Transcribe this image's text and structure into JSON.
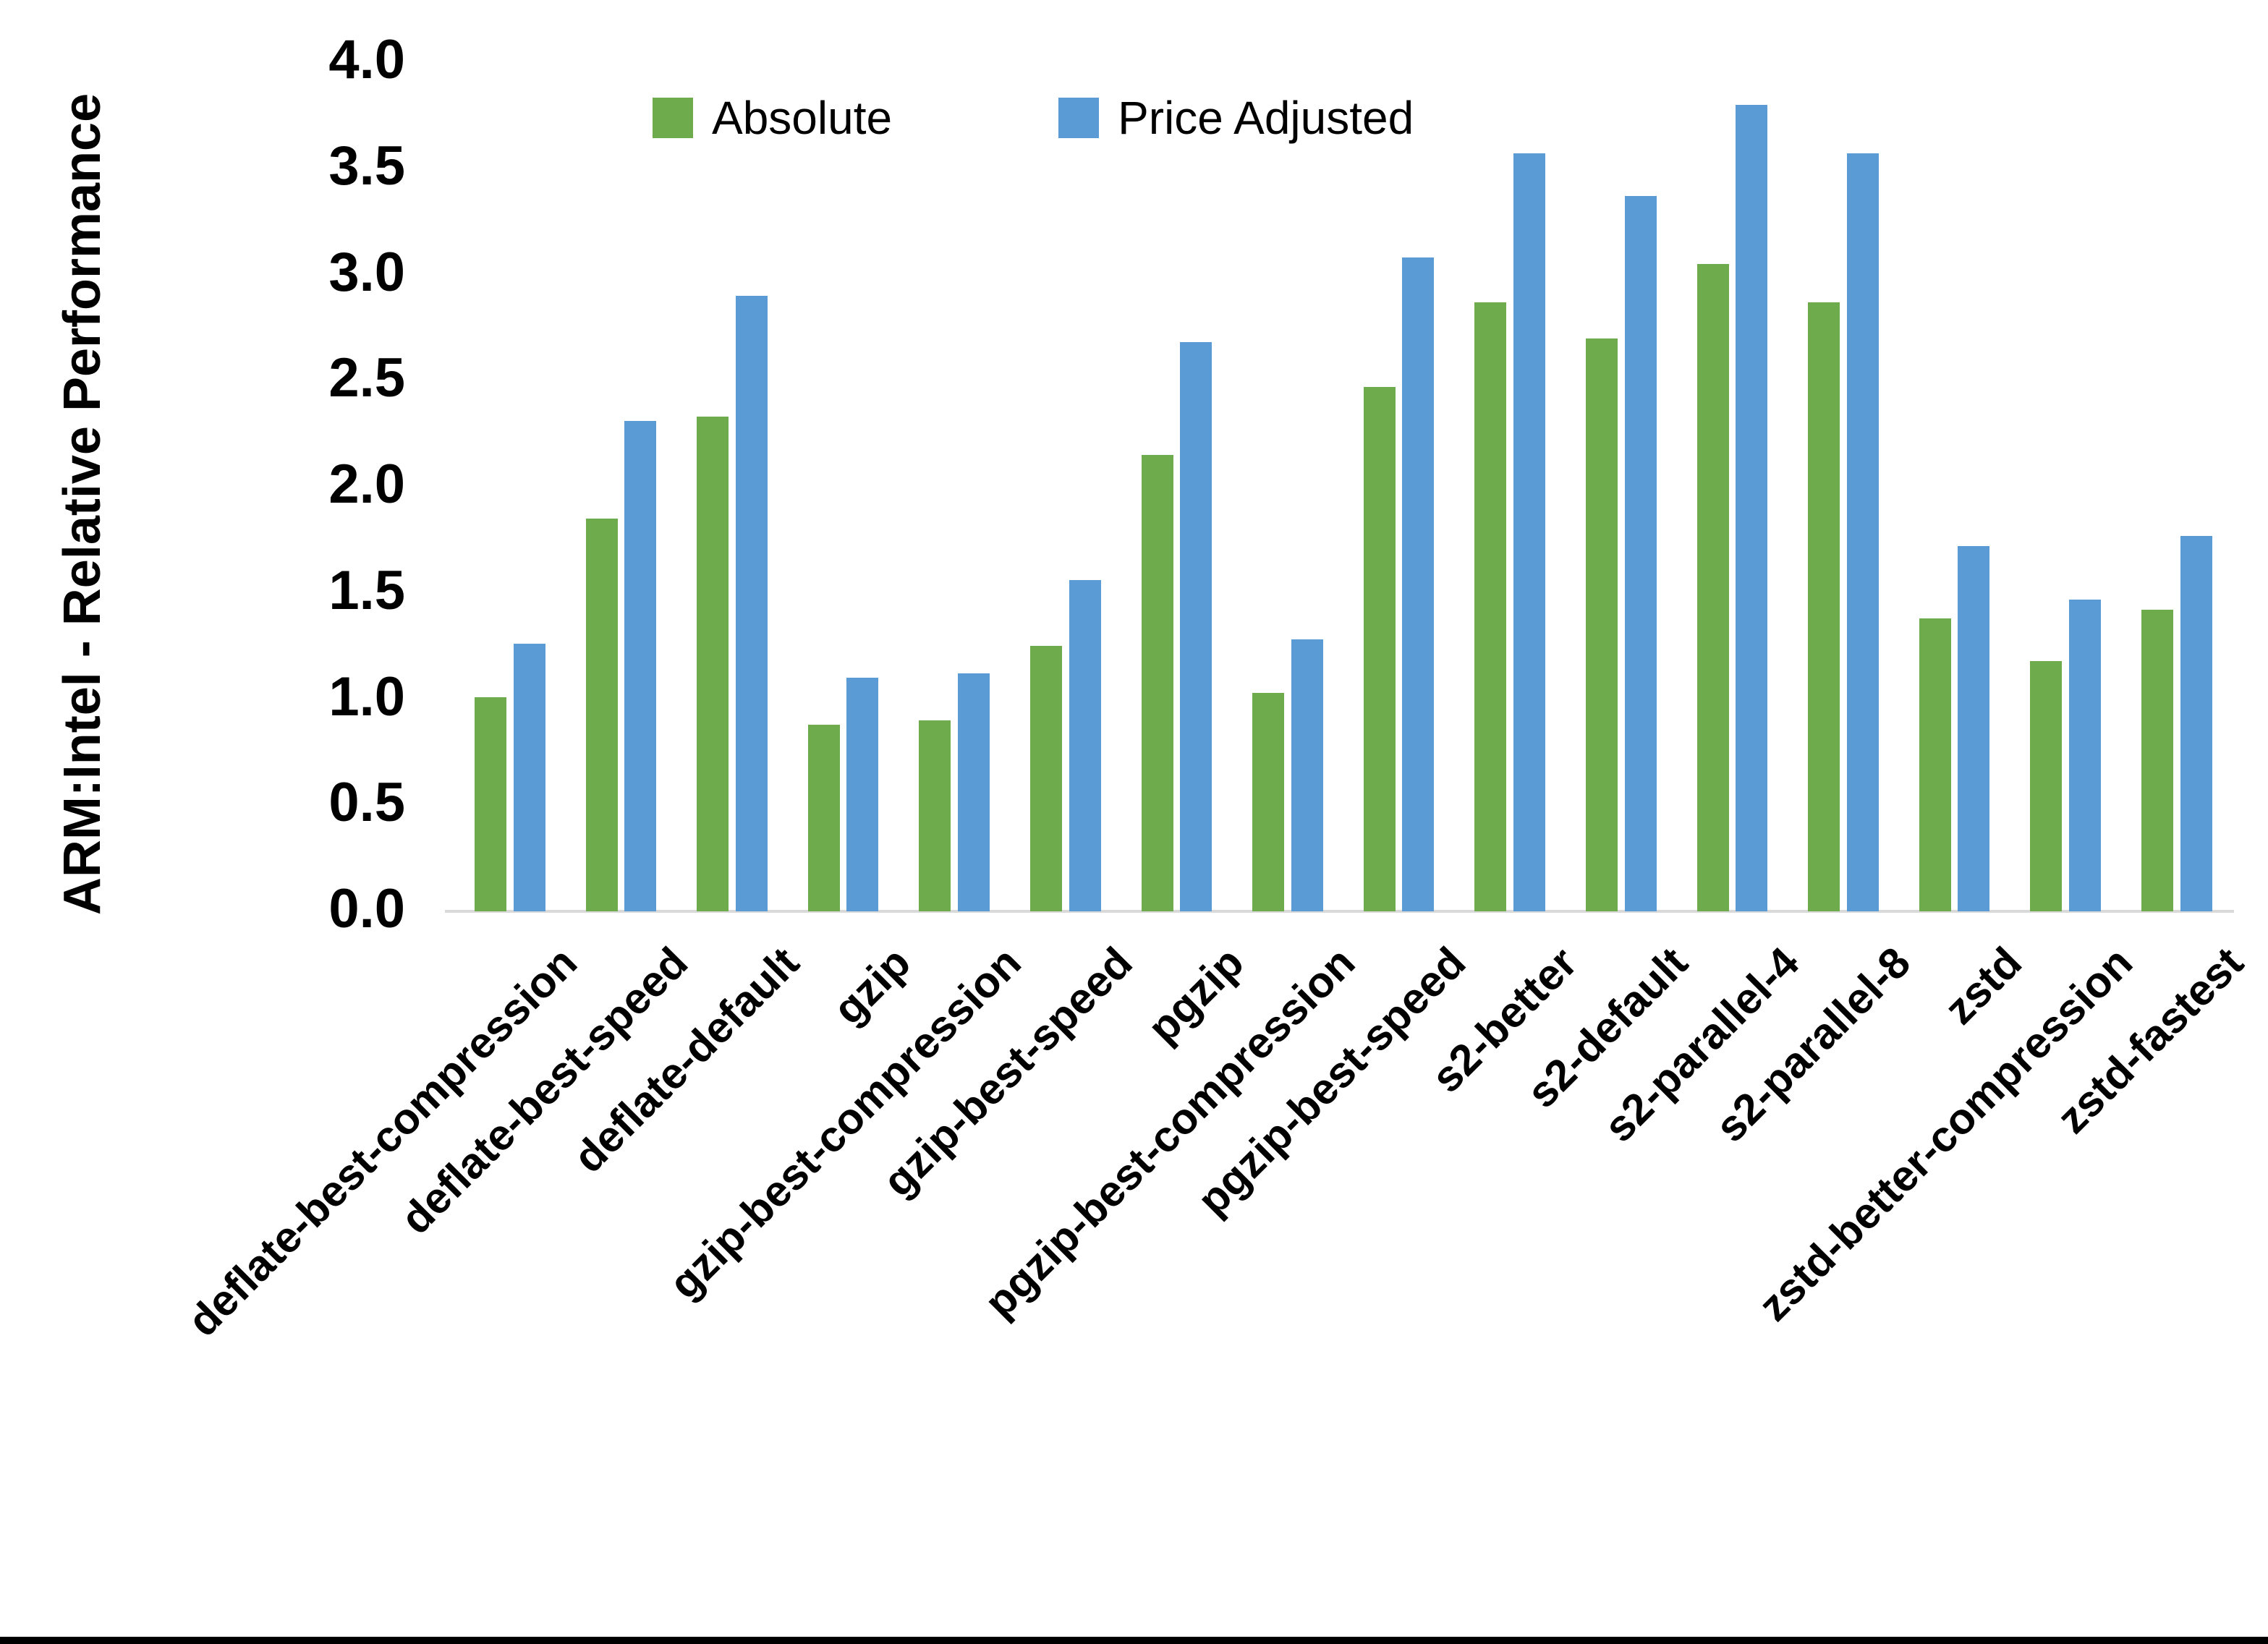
{
  "page": {
    "background": "#ffffff",
    "bottom_border_color": "#000000"
  },
  "colors": {
    "absolute_green": "#6DAB4C",
    "price_adjusted_blue": "#5B9BD5",
    "axis_line_gray": "#D9D9D9",
    "text_black": "#000000"
  },
  "legend": {
    "items": [
      {
        "label": "Absolute",
        "color": "#6DAB4C"
      },
      {
        "label": "Price Adjusted",
        "color": "#5B9BD5"
      }
    ]
  },
  "y_axis": {
    "title": "ARM:Intel - Relative Performance",
    "tick_labels": [
      "0.0",
      "0.5",
      "1.0",
      "1.5",
      "2.0",
      "2.5",
      "3.0",
      "3.5",
      "4.0"
    ]
  },
  "chart_data": {
    "type": "bar",
    "title": "",
    "xlabel": "",
    "ylabel": "ARM:Intel - Relative Performance",
    "ylim": [
      0.0,
      4.0
    ],
    "ytick_step": 0.5,
    "grid": false,
    "legend_position": "top-center",
    "categories": [
      "deflate-best-compression",
      "deflate-best-speed",
      "deflate-default",
      "gzip",
      "gzip-best-compression",
      "gzip-best-speed",
      "pgzip",
      "pgzip-best-compression",
      "pgzip-best-speed",
      "s2-better",
      "s2-default",
      "s2-parallel-4",
      "s2-parallel-8",
      "zstd",
      "zstd-better-compression",
      "zstd-fastest"
    ],
    "series": [
      {
        "name": "Absolute",
        "color": "#6DAB4C",
        "values": [
          1.01,
          1.85,
          2.33,
          0.88,
          0.9,
          1.25,
          2.15,
          1.03,
          2.47,
          2.87,
          2.7,
          3.05,
          2.87,
          1.38,
          1.18,
          1.42
        ]
      },
      {
        "name": "Price Adjusted",
        "color": "#5B9BD5",
        "values": [
          1.26,
          2.31,
          2.9,
          1.1,
          1.12,
          1.56,
          2.68,
          1.28,
          3.08,
          3.57,
          3.37,
          3.8,
          3.57,
          1.72,
          1.47,
          1.77
        ]
      }
    ]
  }
}
